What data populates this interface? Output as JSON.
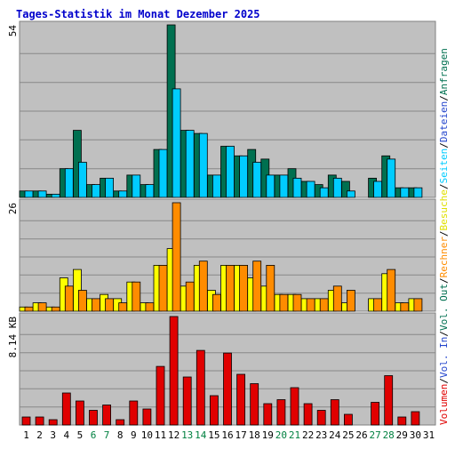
{
  "chart_data": {
    "type": "bar",
    "title": "Tages-Statistik im Monat Dezember 2025",
    "categories": [
      "1",
      "2",
      "3",
      "4",
      "5",
      "6",
      "7",
      "8",
      "9",
      "10",
      "11",
      "12",
      "13",
      "14",
      "15",
      "16",
      "17",
      "18",
      "19",
      "20",
      "21",
      "22",
      "23",
      "24",
      "25",
      "26",
      "27",
      "28",
      "29",
      "30",
      "31"
    ],
    "weekend_days": [
      "6",
      "7",
      "13",
      "14",
      "20",
      "21",
      "27",
      "28"
    ],
    "panels": [
      {
        "id": "top",
        "max_label": "54",
        "ylim": [
          0,
          54
        ],
        "series": [
          {
            "name": "Anfragen",
            "color": "#007050",
            "values": [
              2,
              2,
              1,
              9,
              21,
              4,
              6,
              2,
              7,
              4,
              15,
              54,
              21,
              20,
              7,
              16,
              13,
              15,
              12,
              7,
              9,
              5,
              4,
              7,
              5,
              0,
              6,
              13,
              3,
              3,
              0
            ]
          },
          {
            "name": "Dateien",
            "color": "#00ccff",
            "values": [
              2,
              2,
              1,
              9,
              11,
              4,
              6,
              2,
              7,
              4,
              15,
              34,
              21,
              20,
              7,
              16,
              13,
              11,
              7,
              7,
              6,
              5,
              3,
              6,
              2,
              0,
              5,
              12,
              3,
              3,
              0
            ]
          },
          {
            "name": "Seiten",
            "color": "#00ccff",
            "values": []
          }
        ]
      },
      {
        "id": "middle",
        "max_label": "26",
        "ylim": [
          0,
          26
        ],
        "series": [
          {
            "name": "Besuche",
            "color": "#ffff00",
            "values": [
              1,
              2,
              1,
              8,
              10,
              3,
              4,
              3,
              7,
              2,
              11,
              15,
              6,
              11,
              5,
              11,
              11,
              8,
              6,
              4,
              4,
              3,
              3,
              5,
              2,
              0,
              3,
              9,
              2,
              3,
              0
            ]
          },
          {
            "name": "Rechner",
            "color": "#ff8c00",
            "values": [
              1,
              2,
              1,
              6,
              5,
              3,
              3,
              2,
              7,
              2,
              11,
              26,
              7,
              12,
              4,
              11,
              11,
              12,
              11,
              4,
              4,
              3,
              3,
              6,
              5,
              0,
              3,
              10,
              2,
              3,
              0
            ]
          }
        ]
      },
      {
        "id": "bottom",
        "max_label": "8.14 KB",
        "ylim": [
          0,
          8.14
        ],
        "series": [
          {
            "name": "Volumen",
            "color": "#e00000",
            "values": [
              0.6,
              0.6,
              0.4,
              2.4,
              1.8,
              1.1,
              1.5,
              0.4,
              1.8,
              1.2,
              4.4,
              8.14,
              3.6,
              5.6,
              2.2,
              5.4,
              3.8,
              3.1,
              1.6,
              1.9,
              2.8,
              1.6,
              1.1,
              1.9,
              0.8,
              0,
              1.7,
              3.7,
              0.6,
              1.0,
              0
            ]
          }
        ]
      }
    ],
    "right_legend": [
      {
        "text": "Volumen",
        "color": "#e00000"
      },
      {
        "text": "/",
        "color": "#000000"
      },
      {
        "text": "Vol. In",
        "color": "#2244cc"
      },
      {
        "text": "/",
        "color": "#000000"
      },
      {
        "text": "Vol. Out",
        "color": "#007050"
      },
      {
        "text": "/",
        "color": "#000000"
      },
      {
        "text": "Rechner",
        "color": "#ff8c00"
      },
      {
        "text": "/",
        "color": "#000000"
      },
      {
        "text": "Besuche",
        "color": "#e0e000"
      },
      {
        "text": "/",
        "color": "#000000"
      },
      {
        "text": "Seiten",
        "color": "#00ccff"
      },
      {
        "text": "/",
        "color": "#000000"
      },
      {
        "text": "Dateien",
        "color": "#2244cc"
      },
      {
        "text": "/",
        "color": "#000000"
      },
      {
        "text": "Anfragen",
        "color": "#007050"
      }
    ],
    "colors": {
      "background": "#ffffff",
      "plot_background": "#c0c0c0",
      "title": "#0000cc",
      "weekday_label": "#000000",
      "weekend_label": "#008040",
      "gridline": "#888888"
    },
    "grid": true
  }
}
